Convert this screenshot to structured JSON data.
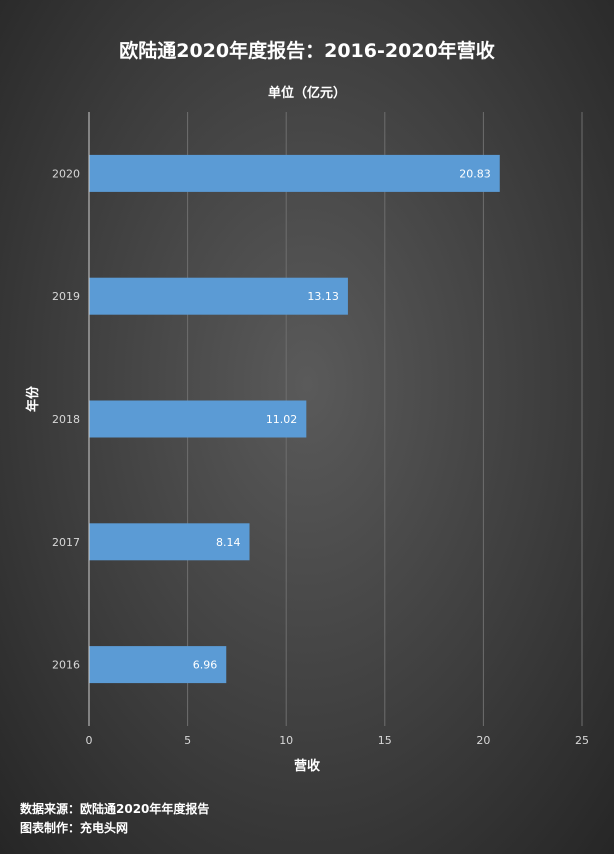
{
  "chart_data": {
    "type": "bar",
    "orientation": "horizontal",
    "title": "欧陆通2020年度报告：2016-2020年营收",
    "subtitle": "单位（亿元）",
    "xlabel": "营收",
    "ylabel": "年份",
    "categories": [
      "2020",
      "2019",
      "2018",
      "2017",
      "2016"
    ],
    "values": [
      20.83,
      13.13,
      11.02,
      8.14,
      6.96
    ],
    "value_labels": [
      "20.83",
      "13.13",
      "11.02",
      "8.14",
      "6.96"
    ],
    "xlim": [
      0,
      25
    ],
    "xticks": [
      0,
      5,
      10,
      15,
      20,
      25
    ],
    "grid": true,
    "bar_color": "#5b9bd5"
  },
  "footer": {
    "source": "数据来源：欧陆通2020年年度报告",
    "maker": "图表制作：充电头网"
  }
}
